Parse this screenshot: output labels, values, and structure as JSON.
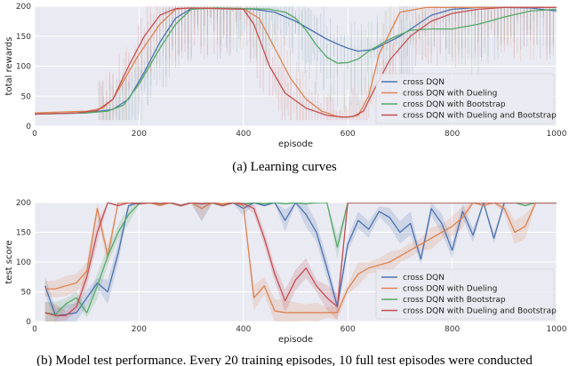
{
  "colors": {
    "cross_dqn": "#4c72b0",
    "dueling": "#dd8452",
    "bootstrap": "#55a868",
    "dueling_bootstrap": "#c44e52",
    "panel_bg": "#eaeaf2"
  },
  "chart_data": [
    {
      "type": "line",
      "caption": "(a) Learning curves",
      "xlabel": "episode",
      "ylabel": "total rewards",
      "xlim": [
        0,
        1000
      ],
      "ylim": [
        0,
        200
      ],
      "xticks": [
        0,
        200,
        400,
        600,
        800,
        1000
      ],
      "yticks": [
        0,
        50,
        100,
        150,
        200
      ],
      "grid": true,
      "legend_position": "lower-right",
      "series": [
        {
          "name": "cross DQN",
          "color_key": "cross_dqn",
          "x": [
            0,
            100,
            150,
            180,
            210,
            240,
            270,
            300,
            350,
            420,
            460,
            500,
            530,
            560,
            580,
            600,
            620,
            650,
            700,
            760,
            800,
            850,
            900,
            950,
            1000
          ],
          "y": [
            20,
            22,
            28,
            45,
            90,
            140,
            180,
            196,
            197,
            195,
            190,
            175,
            160,
            145,
            137,
            130,
            125,
            128,
            150,
            185,
            195,
            198,
            198,
            197,
            192
          ]
        },
        {
          "name": "cross DQN with Dueling",
          "color_key": "dueling",
          "x": [
            0,
            100,
            130,
            150,
            170,
            200,
            240,
            270,
            300,
            350,
            400,
            430,
            460,
            490,
            520,
            550,
            580,
            600,
            620,
            640,
            660,
            700,
            750,
            800,
            850,
            900,
            950,
            1000
          ],
          "y": [
            22,
            25,
            30,
            45,
            75,
            120,
            170,
            195,
            197,
            197,
            196,
            180,
            130,
            80,
            45,
            25,
            16,
            15,
            18,
            50,
            120,
            190,
            198,
            198,
            198,
            198,
            198,
            198
          ]
        },
        {
          "name": "cross DQN with Bootstrap",
          "color_key": "bootstrap",
          "x": [
            0,
            100,
            140,
            170,
            200,
            240,
            270,
            300,
            350,
            400,
            450,
            480,
            500,
            520,
            540,
            560,
            580,
            600,
            620,
            640,
            680,
            720,
            760,
            800,
            850,
            900,
            950,
            1000
          ],
          "y": [
            20,
            22,
            25,
            35,
            70,
            130,
            170,
            195,
            197,
            196,
            195,
            190,
            180,
            160,
            135,
            115,
            105,
            106,
            112,
            125,
            145,
            160,
            162,
            162,
            170,
            182,
            192,
            195
          ]
        },
        {
          "name": "cross DQN with Dueling and Bootstrap",
          "color_key": "dueling_bootstrap",
          "x": [
            0,
            80,
            120,
            150,
            180,
            210,
            240,
            270,
            300,
            350,
            400,
            420,
            450,
            480,
            520,
            560,
            590,
            610,
            630,
            650,
            680,
            720,
            760,
            800,
            850,
            900,
            950,
            1000
          ],
          "y": [
            20,
            22,
            26,
            45,
            100,
            150,
            185,
            196,
            197,
            196,
            195,
            170,
            100,
            55,
            30,
            18,
            15,
            16,
            25,
            60,
            110,
            150,
            175,
            188,
            195,
            198,
            198,
            198
          ]
        }
      ]
    },
    {
      "type": "line",
      "caption": "(b) Model test performance. Every 20 training episodes, 10 full test episodes were conducted",
      "xlabel": "episode",
      "ylabel": "test score",
      "xlim": [
        0,
        1000
      ],
      "ylim": [
        0,
        200
      ],
      "xticks": [
        0,
        200,
        400,
        600,
        800,
        1000
      ],
      "yticks": [
        0,
        50,
        100,
        150,
        200
      ],
      "grid": true,
      "legend_position": "lower-right",
      "series": [
        {
          "name": "cross DQN",
          "color_key": "cross_dqn",
          "x": [
            20,
            40,
            60,
            80,
            100,
            120,
            140,
            160,
            180,
            200,
            220,
            240,
            260,
            280,
            300,
            320,
            340,
            360,
            380,
            400,
            420,
            440,
            460,
            480,
            500,
            520,
            540,
            560,
            580,
            600,
            620,
            640,
            660,
            680,
            700,
            720,
            740,
            760,
            780,
            800,
            820,
            840,
            860,
            880,
            900,
            920,
            940,
            960,
            980,
            1000
          ],
          "y": [
            60,
            10,
            12,
            15,
            40,
            65,
            50,
            115,
            195,
            200,
            200,
            198,
            200,
            195,
            200,
            190,
            200,
            195,
            200,
            190,
            200,
            195,
            200,
            170,
            200,
            180,
            150,
            90,
            25,
            130,
            170,
            155,
            185,
            175,
            150,
            165,
            105,
            190,
            165,
            120,
            185,
            145,
            200,
            140,
            200,
            200,
            200,
            200,
            200,
            200
          ]
        },
        {
          "name": "cross DQN with Dueling",
          "color_key": "dueling",
          "x": [
            20,
            40,
            60,
            80,
            100,
            120,
            140,
            160,
            180,
            200,
            220,
            240,
            260,
            280,
            300,
            320,
            340,
            360,
            380,
            400,
            420,
            440,
            460,
            480,
            500,
            520,
            540,
            560,
            580,
            600,
            620,
            640,
            660,
            680,
            700,
            720,
            740,
            760,
            780,
            800,
            820,
            840,
            860,
            880,
            900,
            920,
            940,
            960,
            980,
            1000
          ],
          "y": [
            55,
            55,
            60,
            65,
            85,
            190,
            110,
            200,
            200,
            198,
            200,
            195,
            200,
            195,
            200,
            190,
            200,
            198,
            200,
            195,
            40,
            60,
            18,
            15,
            15,
            15,
            15,
            15,
            15,
            55,
            80,
            90,
            95,
            100,
            110,
            120,
            130,
            140,
            150,
            160,
            175,
            200,
            195,
            200,
            190,
            150,
            160,
            200,
            200,
            200
          ]
        },
        {
          "name": "cross DQN with Bootstrap",
          "color_key": "bootstrap",
          "x": [
            20,
            40,
            60,
            80,
            100,
            120,
            140,
            160,
            180,
            200,
            220,
            240,
            260,
            280,
            300,
            320,
            340,
            360,
            380,
            400,
            420,
            440,
            460,
            480,
            500,
            520,
            540,
            560,
            580,
            600,
            620,
            640,
            660,
            680,
            700,
            720,
            740,
            760,
            780,
            800,
            820,
            840,
            860,
            880,
            900,
            920,
            940,
            960,
            980,
            1000
          ],
          "y": [
            15,
            12,
            30,
            40,
            15,
            60,
            110,
            150,
            180,
            198,
            200,
            198,
            200,
            195,
            200,
            198,
            200,
            195,
            200,
            198,
            200,
            198,
            200,
            198,
            200,
            198,
            200,
            200,
            125,
            200,
            200,
            200,
            200,
            200,
            200,
            200,
            200,
            200,
            200,
            200,
            200,
            200,
            200,
            200,
            200,
            200,
            195,
            200,
            200,
            200
          ]
        },
        {
          "name": "cross DQN with Dueling and Bootstrap",
          "color_key": "dueling_bootstrap",
          "x": [
            20,
            40,
            60,
            80,
            100,
            120,
            140,
            160,
            180,
            200,
            220,
            240,
            260,
            280,
            300,
            320,
            340,
            360,
            380,
            400,
            420,
            440,
            460,
            480,
            500,
            520,
            540,
            560,
            580,
            600,
            620,
            640,
            660,
            680,
            700,
            720,
            740,
            760,
            780,
            800,
            820,
            840,
            860,
            880,
            900,
            920,
            940,
            960,
            980,
            1000
          ],
          "y": [
            15,
            10,
            10,
            25,
            75,
            150,
            200,
            195,
            200,
            198,
            200,
            198,
            200,
            195,
            200,
            198,
            200,
            195,
            200,
            198,
            190,
            140,
            80,
            35,
            70,
            90,
            60,
            40,
            25,
            200,
            200,
            200,
            200,
            200,
            200,
            200,
            200,
            200,
            200,
            200,
            200,
            200,
            200,
            200,
            200,
            200,
            200,
            200,
            200,
            200
          ]
        }
      ]
    }
  ]
}
